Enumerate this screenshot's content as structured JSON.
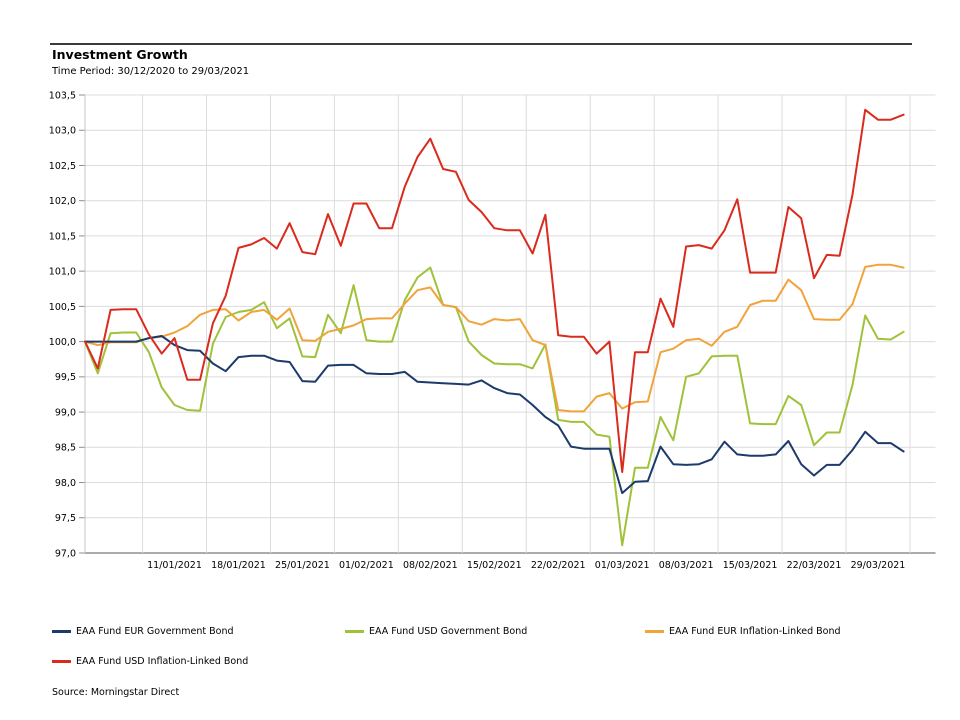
{
  "header": {
    "title": "Investment Growth",
    "time_period": "Time Period: 30/12/2020 to 29/03/2021"
  },
  "source": "Source: Morningstar Direct",
  "colors": {
    "grid": "#dcdcdc",
    "axis": "#8f8f8f",
    "left_axis": "#c4c4c4",
    "header_rule": "#3a3a3a"
  },
  "chart_data": {
    "type": "line",
    "title": "Investment Growth",
    "subtitle": "Time Period: 30/12/2020 to 29/03/2021",
    "ylim": [
      97.0,
      103.5
    ],
    "y_tick_step": 0.5,
    "y_tick_labels": [
      "97,0",
      "97,5",
      "98,0",
      "98,5",
      "99,0",
      "99,5",
      "100,0",
      "100,5",
      "101,0",
      "101,5",
      "102,0",
      "102,5",
      "103,0",
      "103,5"
    ],
    "x_tick_labels": [
      "11/01/2021",
      "18/01/2021",
      "25/01/2021",
      "01/02/2021",
      "08/02/2021",
      "15/02/2021",
      "22/02/2021",
      "01/03/2021",
      "08/03/2021",
      "15/03/2021",
      "22/03/2021",
      "29/03/2021"
    ],
    "x_tick_indices": [
      7,
      12,
      17,
      22,
      27,
      32,
      37,
      42,
      47,
      52,
      57,
      62
    ],
    "grid": true,
    "legend_position": "bottom",
    "x": [
      "30/12/2020",
      "31/12/2020",
      "04/01/2021",
      "05/01/2021",
      "06/01/2021",
      "07/01/2021",
      "08/01/2021",
      "11/01/2021",
      "12/01/2021",
      "13/01/2021",
      "14/01/2021",
      "15/01/2021",
      "18/01/2021",
      "19/01/2021",
      "20/01/2021",
      "21/01/2021",
      "22/01/2021",
      "25/01/2021",
      "26/01/2021",
      "27/01/2021",
      "28/01/2021",
      "29/01/2021",
      "01/02/2021",
      "02/02/2021",
      "03/02/2021",
      "04/02/2021",
      "05/02/2021",
      "08/02/2021",
      "09/02/2021",
      "10/02/2021",
      "11/02/2021",
      "12/02/2021",
      "15/02/2021",
      "16/02/2021",
      "17/02/2021",
      "18/02/2021",
      "19/02/2021",
      "22/02/2021",
      "23/02/2021",
      "24/02/2021",
      "25/02/2021",
      "26/02/2021",
      "01/03/2021",
      "02/03/2021",
      "03/03/2021",
      "04/03/2021",
      "05/03/2021",
      "08/03/2021",
      "09/03/2021",
      "10/03/2021",
      "11/03/2021",
      "12/03/2021",
      "15/03/2021",
      "16/03/2021",
      "17/03/2021",
      "18/03/2021",
      "19/03/2021",
      "22/03/2021",
      "23/03/2021",
      "24/03/2021",
      "25/03/2021",
      "26/03/2021",
      "29/03/2021",
      "30/03/2021",
      "31/03/2021"
    ],
    "series": [
      {
        "name": "EAA Fund EUR Government Bond",
        "color": "#1c3a6b",
        "values": [
          100.0,
          100.0,
          100.0,
          100.0,
          100.0,
          100.05,
          100.08,
          99.95,
          99.88,
          99.87,
          99.69,
          99.58,
          99.78,
          99.8,
          99.8,
          99.73,
          99.71,
          99.44,
          99.43,
          99.66,
          99.67,
          99.67,
          99.55,
          99.54,
          99.54,
          99.57,
          99.43,
          99.42,
          99.41,
          99.4,
          99.39,
          99.45,
          99.34,
          99.27,
          99.25,
          99.1,
          98.93,
          98.81,
          98.51,
          98.48,
          98.48,
          98.48,
          97.85,
          98.01,
          98.02,
          98.51,
          98.26,
          98.25,
          98.26,
          98.33,
          98.58,
          98.4,
          98.38,
          98.38,
          98.4,
          98.59,
          98.26,
          98.1,
          98.25,
          98.25,
          98.46,
          98.72,
          98.56,
          98.56,
          98.44
        ]
      },
      {
        "name": "EAA Fund USD Government Bond",
        "color": "#a0c13a",
        "values": [
          100.0,
          99.55,
          100.12,
          100.13,
          100.13,
          99.85,
          99.35,
          99.1,
          99.03,
          99.02,
          99.97,
          100.35,
          100.42,
          100.45,
          100.56,
          100.19,
          100.33,
          99.79,
          99.78,
          100.38,
          100.12,
          100.8,
          100.02,
          100.0,
          100.0,
          100.59,
          100.91,
          101.05,
          100.52,
          100.49,
          100.0,
          99.81,
          99.69,
          99.68,
          99.68,
          99.62,
          99.96,
          98.89,
          98.86,
          98.86,
          98.68,
          98.65,
          97.11,
          98.21,
          98.21,
          98.93,
          98.6,
          99.5,
          99.55,
          99.79,
          99.8,
          99.8,
          98.84,
          98.83,
          98.83,
          99.23,
          99.1,
          98.53,
          98.71,
          98.71,
          99.38,
          100.37,
          100.04,
          100.03,
          100.14
        ]
      },
      {
        "name": "EAA Fund EUR Inflation-Linked Bond",
        "color": "#f1a33c",
        "values": [
          100.0,
          99.95,
          99.99,
          99.99,
          99.99,
          100.05,
          100.07,
          100.13,
          100.22,
          100.38,
          100.45,
          100.46,
          100.3,
          100.42,
          100.45,
          100.31,
          100.47,
          100.02,
          100.01,
          100.14,
          100.18,
          100.23,
          100.32,
          100.33,
          100.33,
          100.54,
          100.73,
          100.77,
          100.52,
          100.49,
          100.29,
          100.24,
          100.32,
          100.3,
          100.32,
          100.02,
          99.95,
          99.03,
          99.01,
          99.01,
          99.22,
          99.27,
          99.05,
          99.14,
          99.15,
          99.85,
          99.9,
          100.02,
          100.04,
          99.94,
          100.14,
          100.21,
          100.52,
          100.58,
          100.58,
          100.88,
          100.73,
          100.32,
          100.31,
          100.31,
          100.53,
          101.06,
          101.09,
          101.09,
          101.05
        ]
      },
      {
        "name": "EAA Fund USD Inflation-Linked Bond",
        "color": "#d92b1e",
        "values": [
          100.0,
          99.62,
          100.45,
          100.46,
          100.46,
          100.1,
          99.83,
          100.05,
          99.46,
          99.46,
          100.26,
          100.65,
          101.33,
          101.38,
          101.47,
          101.32,
          101.68,
          101.27,
          101.24,
          101.81,
          101.36,
          101.96,
          101.96,
          101.61,
          101.61,
          102.2,
          102.62,
          102.88,
          102.45,
          102.41,
          102.01,
          101.84,
          101.61,
          101.58,
          101.58,
          101.25,
          101.8,
          100.09,
          100.07,
          100.07,
          99.83,
          100.0,
          98.15,
          99.85,
          99.85,
          100.61,
          100.21,
          101.35,
          101.37,
          101.32,
          101.58,
          102.02,
          100.98,
          100.98,
          100.98,
          101.91,
          101.75,
          100.9,
          101.23,
          101.22,
          102.08,
          103.29,
          103.15,
          103.15,
          103.22
        ]
      }
    ],
    "legend_order": [
      0,
      1,
      2,
      3
    ],
    "draw_order": [
      1,
      2,
      0,
      3
    ]
  }
}
